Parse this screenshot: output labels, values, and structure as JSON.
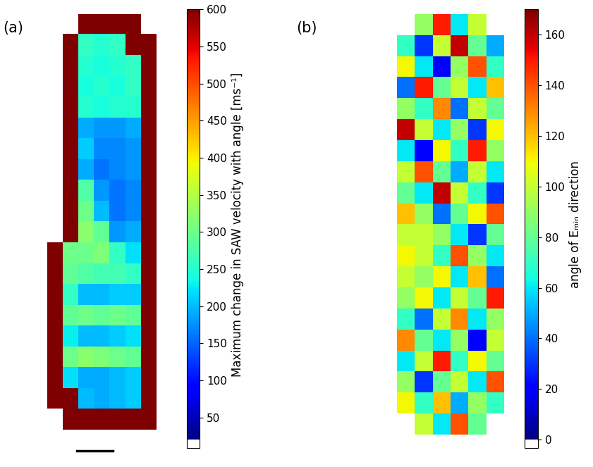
{
  "chart_data": [
    {
      "type": "heatmap",
      "title": "(a)",
      "color": "jet",
      "tick_labels": false,
      "colorbar": {
        "label": "Maximum change in SAW velocity with angle [ms⁻¹]",
        "range": [
          20,
          600
        ],
        "ticks": [
          50,
          100,
          150,
          200,
          250,
          300,
          350,
          400,
          450,
          500,
          550,
          600
        ]
      },
      "cells": [
        [
          null,
          null,
          600,
          600,
          600,
          600,
          null,
          null
        ],
        [
          null,
          600,
          260,
          250,
          260,
          600,
          600,
          null
        ],
        [
          null,
          600,
          250,
          240,
          250,
          260,
          600,
          null
        ],
        [
          null,
          600,
          240,
          250,
          240,
          260,
          600,
          null
        ],
        [
          null,
          600,
          250,
          240,
          250,
          250,
          600,
          null
        ],
        [
          null,
          600,
          190,
          180,
          180,
          190,
          600,
          null
        ],
        [
          null,
          600,
          210,
          170,
          170,
          180,
          600,
          null
        ],
        [
          null,
          600,
          190,
          160,
          170,
          180,
          600,
          null
        ],
        [
          null,
          600,
          280,
          180,
          160,
          170,
          600,
          null
        ],
        [
          null,
          600,
          300,
          200,
          160,
          170,
          600,
          null
        ],
        [
          null,
          600,
          320,
          290,
          180,
          190,
          600,
          null
        ],
        [
          600,
          300,
          300,
          310,
          260,
          220,
          600,
          null
        ],
        [
          600,
          290,
          280,
          270,
          270,
          260,
          600,
          null
        ],
        [
          600,
          260,
          200,
          200,
          210,
          210,
          600,
          null
        ],
        [
          600,
          290,
          300,
          290,
          300,
          290,
          600,
          null
        ],
        [
          600,
          230,
          200,
          200,
          210,
          220,
          600,
          null
        ],
        [
          600,
          300,
          320,
          310,
          300,
          290,
          600,
          null
        ],
        [
          600,
          220,
          190,
          190,
          200,
          210,
          600,
          null
        ],
        [
          600,
          600,
          200,
          190,
          200,
          210,
          600,
          null
        ],
        [
          null,
          600,
          600,
          600,
          600,
          600,
          600,
          null
        ]
      ]
    },
    {
      "type": "heatmap",
      "title": "(b)",
      "color": "jet",
      "tick_labels": false,
      "colorbar": {
        "label": "angle of Eₘᵢₙ direction",
        "range": [
          0,
          170
        ],
        "ticks": [
          0,
          20,
          40,
          60,
          80,
          100,
          120,
          140,
          160
        ]
      },
      "cells": [
        [
          null,
          90,
          150,
          60,
          100,
          null
        ],
        [
          70,
          30,
          100,
          160,
          80,
          50
        ],
        [
          110,
          60,
          20,
          90,
          140,
          70
        ],
        [
          40,
          150,
          80,
          100,
          60,
          120
        ],
        [
          90,
          70,
          130,
          40,
          100,
          80
        ],
        [
          160,
          100,
          60,
          90,
          30,
          110
        ],
        [
          60,
          20,
          110,
          70,
          150,
          90
        ],
        [
          100,
          140,
          80,
          50,
          100,
          60
        ],
        [
          80,
          60,
          160,
          100,
          70,
          30
        ],
        [
          120,
          90,
          40,
          80,
          110,
          140
        ],
        [
          100,
          100,
          90,
          60,
          30,
          80
        ],
        [
          110,
          100,
          70,
          140,
          90,
          60
        ],
        [
          100,
          90,
          110,
          60,
          120,
          40
        ],
        [
          90,
          110,
          60,
          100,
          80,
          150
        ],
        [
          70,
          40,
          100,
          130,
          60,
          90
        ],
        [
          130,
          80,
          60,
          90,
          20,
          100
        ],
        [
          60,
          100,
          150,
          70,
          110,
          80
        ],
        [
          90,
          30,
          80,
          100,
          60,
          140
        ],
        [
          110,
          70,
          120,
          50,
          90,
          70
        ],
        [
          null,
          100,
          60,
          140,
          80,
          null
        ]
      ]
    }
  ]
}
